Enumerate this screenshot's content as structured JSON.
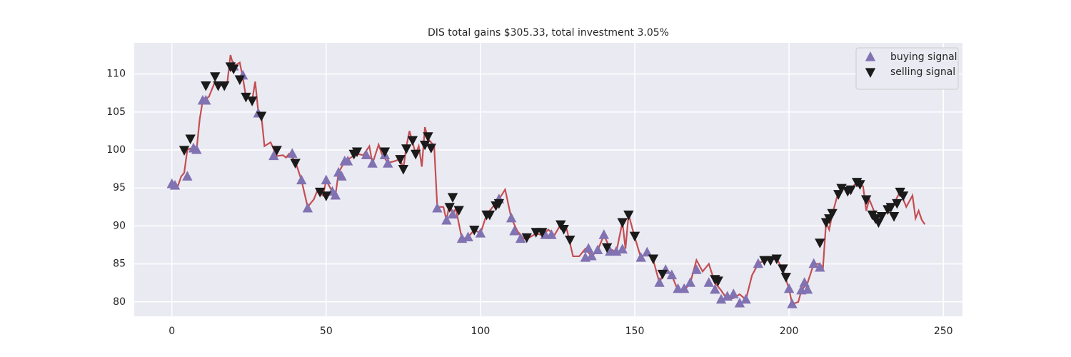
{
  "chart_data": {
    "type": "line",
    "title": "DIS total gains $305.33, total investment 3.05%",
    "xlim": [
      -12.2,
      256.2
    ],
    "ylim": [
      78.1,
      114.1
    ],
    "xticks": [
      0,
      50,
      100,
      150,
      200,
      250
    ],
    "yticks": [
      80,
      85,
      90,
      95,
      100,
      105,
      110
    ],
    "grid": true,
    "legend": "upper right",
    "series": [
      {
        "type": "line",
        "color": "#c44e52",
        "x": [
          0,
          2,
          3,
          4,
          5,
          6,
          8,
          9,
          10,
          12,
          14,
          16,
          18,
          19,
          20,
          22,
          23,
          24,
          26,
          27,
          28,
          29,
          30,
          32,
          34,
          36,
          37,
          38,
          40,
          42,
          44,
          46,
          47,
          49,
          50,
          52,
          53,
          54,
          56,
          58,
          60,
          62,
          64,
          65,
          67,
          68,
          70,
          72,
          74,
          75,
          76,
          77,
          78,
          79,
          80,
          81,
          82,
          83,
          85,
          86,
          88,
          89,
          90,
          91,
          92,
          94,
          96,
          98,
          100,
          102,
          104,
          106,
          108,
          110,
          112,
          114,
          116,
          118,
          120,
          122,
          124,
          126,
          128,
          130,
          132,
          134,
          136,
          138,
          140,
          142,
          144,
          146,
          147,
          148,
          150,
          152,
          154,
          156,
          158,
          160,
          162,
          164,
          166,
          168,
          170,
          172,
          174,
          176,
          178,
          180,
          182,
          184,
          186,
          188,
          190,
          192,
          194,
          196,
          198,
          200,
          201,
          203,
          204,
          206,
          208,
          210,
          211,
          212,
          213,
          214,
          216,
          218,
          220,
          222,
          224,
          225,
          226,
          228,
          230,
          232,
          234,
          236,
          237,
          238,
          240,
          241,
          242,
          243,
          244
        ],
        "values": [
          95.5,
          95.3,
          96.5,
          97,
          100,
          100.2,
          100,
          104,
          106.5,
          107,
          109,
          108.5,
          109,
          112.5,
          111,
          111.5,
          109.5,
          107,
          106.5,
          109,
          105,
          104.5,
          100.5,
          101,
          99.2,
          99.3,
          99,
          99.5,
          98.5,
          96,
          92.5,
          93.5,
          94.5,
          94,
          96,
          94.5,
          94,
          97,
          98.5,
          99,
          99.5,
          99.3,
          100.5,
          98.2,
          100.7,
          99.5,
          98.3,
          98.5,
          98.8,
          97.5,
          100.5,
          102.5,
          101,
          99.5,
          100.5,
          97.8,
          103,
          101.5,
          100.5,
          92.5,
          92.5,
          90.7,
          93,
          91.5,
          92.3,
          88.3,
          88.5,
          89.5,
          89,
          91.5,
          92.5,
          93.5,
          94.8,
          91,
          89.3,
          88.3,
          88.5,
          89,
          88.8,
          89.5,
          88.8,
          90.2,
          89.5,
          86,
          86,
          87,
          86,
          86.8,
          88.8,
          87,
          86.5,
          90.5,
          87,
          91.5,
          88.5,
          85.8,
          86.5,
          85.5,
          82.5,
          84.5,
          83.5,
          81.5,
          81.5,
          82.5,
          85.5,
          84,
          85,
          82.5,
          81.5,
          80.3,
          80.5,
          81,
          80.3,
          83.5,
          85,
          85.5,
          85.5,
          85.7,
          84.2,
          81.7,
          79.7,
          80,
          81.5,
          82.5,
          85,
          85,
          84.5,
          90.5,
          89.5,
          91.5,
          94.5,
          95,
          94.8,
          95.8,
          95.2,
          92,
          93.5,
          91.5,
          91,
          92,
          93,
          94.5,
          93.5,
          92.5,
          94,
          91,
          92,
          90.8,
          90.2
        ]
      },
      {
        "type": "scatter",
        "name": "buying signal",
        "marker": "triangle-up",
        "color": "#8172b2",
        "x": [
          0,
          1,
          5,
          7,
          8,
          10,
          11,
          20,
          23,
          28,
          33,
          39,
          42,
          44,
          50,
          52,
          53,
          54,
          55,
          56,
          57,
          63,
          65,
          69,
          70,
          86,
          89,
          91,
          94,
          96,
          100,
          106,
          110,
          111,
          113,
          121,
          123,
          134,
          135,
          136,
          138,
          140,
          142,
          144,
          146,
          152,
          154,
          158,
          160,
          162,
          164,
          166,
          168,
          170,
          174,
          176,
          178,
          180,
          182,
          184,
          186,
          190,
          200,
          201,
          204,
          205,
          206,
          208,
          210
        ],
        "values": [
          95.5,
          95.3,
          96.5,
          100.2,
          100,
          106.5,
          106.5,
          111,
          109.8,
          104.8,
          99.2,
          99.5,
          96,
          92.3,
          96,
          94.5,
          94,
          97,
          96.5,
          98.5,
          98.5,
          99.3,
          98.2,
          99.3,
          98.2,
          92.3,
          90.7,
          91.5,
          88.3,
          88.5,
          89,
          93.5,
          91,
          89.3,
          88.3,
          88.8,
          88.8,
          85.8,
          87,
          86,
          86.8,
          88.8,
          86.6,
          86.6,
          86.9,
          85.8,
          86.5,
          82.5,
          84.2,
          83.5,
          81.7,
          81.7,
          82.5,
          84.2,
          82.5,
          81.6,
          80.3,
          80.7,
          81,
          79.8,
          80.3,
          85,
          81.7,
          79.7,
          81.5,
          82.5,
          81.6,
          85,
          84.5
        ]
      },
      {
        "type": "scatter",
        "name": "selling signal",
        "marker": "triangle-down",
        "color": "#1a1a1a",
        "x": [
          4,
          6,
          11,
          14,
          15,
          17,
          19,
          20,
          22,
          24,
          26,
          29,
          34,
          40,
          48,
          50,
          59,
          60,
          69,
          74,
          75,
          76,
          78,
          79,
          82,
          83,
          84,
          90,
          91,
          93,
          98,
          102,
          103,
          105,
          106,
          115,
          118,
          120,
          126,
          127,
          129,
          141,
          146,
          148,
          150,
          156,
          159,
          176,
          177,
          192,
          194,
          196,
          198,
          199,
          210,
          212,
          213,
          214,
          216,
          217,
          219,
          220,
          222,
          223,
          225,
          227,
          228,
          229,
          230,
          232,
          233,
          234,
          235,
          236,
          237
        ],
        "values": [
          100,
          101.5,
          108.5,
          109.7,
          108.5,
          108.5,
          111,
          110.7,
          109.3,
          107,
          106.5,
          104.5,
          100,
          98.3,
          94.5,
          94,
          99.5,
          99.8,
          99.8,
          98.8,
          97.5,
          100.2,
          101.3,
          99.5,
          100.7,
          101.8,
          100.3,
          92.5,
          93.8,
          92.1,
          89.5,
          91.5,
          91.5,
          92.7,
          93,
          88.5,
          89.2,
          89.2,
          90.2,
          89.6,
          88.2,
          87.2,
          90.5,
          91.5,
          88.7,
          85.7,
          83.7,
          83,
          82.8,
          85.5,
          85.5,
          85.7,
          84.4,
          83.3,
          87.8,
          90.5,
          91,
          91.7,
          94.2,
          95,
          94.6,
          94.8,
          95.8,
          95.5,
          93.5,
          91.5,
          91,
          90.5,
          91.3,
          92.2,
          92.5,
          91.3,
          93,
          94.5,
          94
        ]
      }
    ]
  }
}
